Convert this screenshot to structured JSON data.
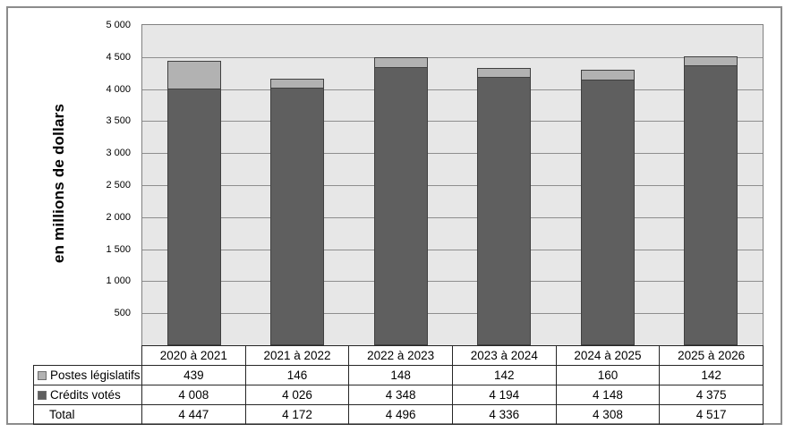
{
  "figure": {
    "background": "#ffffff",
    "frame_border_color": "#8c8c8c"
  },
  "chart_data": {
    "type": "bar",
    "stacked": true,
    "title": "",
    "xlabel": "",
    "ylabel": "en millions de dollars",
    "ylim": [
      0,
      5000
    ],
    "grid": "horizontal-major",
    "legend_position": "table-below",
    "plot_bg": "#e7e7e7",
    "gridline_color": "#8e8e8e",
    "bar_border_color": "#404040",
    "categories": [
      "2020 à 2021",
      "2021 à 2022",
      "2022 à 2023",
      "2023 à 2024",
      "2024 à 2025",
      "2025 à 2026"
    ],
    "series": [
      {
        "name": "Postes législatifs",
        "color": "#b2b2b2",
        "stack_order": "top",
        "values": [
          439,
          146,
          148,
          142,
          160,
          142
        ]
      },
      {
        "name": "Crédits votés",
        "color": "#5f5f5f",
        "stack_order": "bottom",
        "values": [
          4008,
          4026,
          4348,
          4194,
          4148,
          4375
        ]
      }
    ],
    "totals": [
      4447,
      4172,
      4496,
      4336,
      4308,
      4517
    ],
    "yticks": [
      {
        "value": 5000,
        "label": "5 000"
      },
      {
        "value": 4500,
        "label": "4 500"
      },
      {
        "value": 4000,
        "label": "4 000"
      },
      {
        "value": 3500,
        "label": "3 500"
      },
      {
        "value": 3000,
        "label": "3 000"
      },
      {
        "value": 2500,
        "label": "2 500"
      },
      {
        "value": 2000,
        "label": "2 000"
      },
      {
        "value": 1500,
        "label": "1 500"
      },
      {
        "value": 1000,
        "label": "1 000"
      },
      {
        "value": 500,
        "label": "500"
      }
    ]
  },
  "table": {
    "header": [
      "2020 à 2021",
      "2021 à 2022",
      "2022 à 2023",
      "2023 à 2024",
      "2024 à 2025",
      "2025 à 2026"
    ],
    "rows": [
      {
        "label": "Postes législatifs",
        "marker_color": "#b2b2b2",
        "values": [
          "439",
          "146",
          "148",
          "142",
          "160",
          "142"
        ]
      },
      {
        "label": "Crédits votés",
        "marker_color": "#5f5f5f",
        "values": [
          "4 008",
          "4 026",
          "4 348",
          "4 194",
          "4 148",
          "4 375"
        ]
      },
      {
        "label": "Total",
        "marker_color": null,
        "values": [
          "4 447",
          "4 172",
          "4 496",
          "4 336",
          "4 308",
          "4 517"
        ]
      }
    ]
  }
}
